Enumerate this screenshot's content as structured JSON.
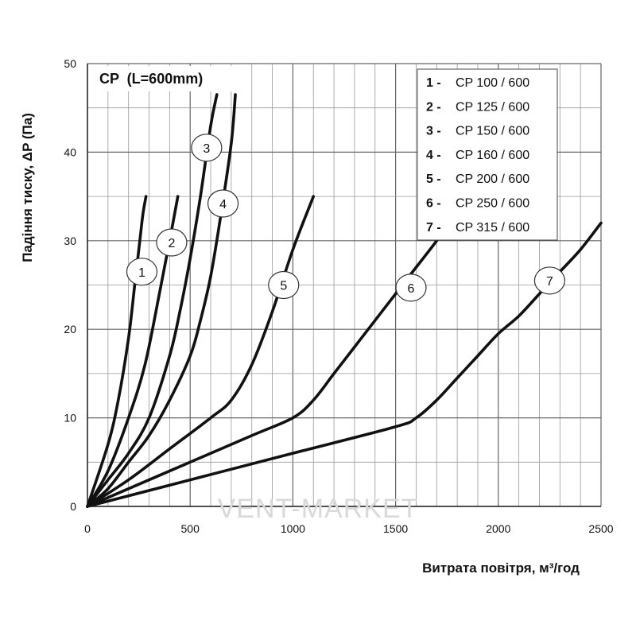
{
  "watermark": "VENT-MARKET",
  "chart_data": {
    "type": "line",
    "title": "CP  (L=600mm)",
    "xlabel": "Витрата повітря, м³/год",
    "ylabel": "Падіння тиску, ΔP (Па)",
    "xlim": [
      0,
      2500
    ],
    "ylim": [
      0,
      50
    ],
    "xticks": [
      0,
      500,
      1000,
      1500,
      2000,
      2500
    ],
    "yticks": [
      0,
      10,
      20,
      30,
      40,
      50
    ],
    "grid": true,
    "legend_position": "top-right",
    "series": [
      {
        "name": "CP 100 / 600",
        "number": "1",
        "label_at": [
          265,
          26.5
        ],
        "x": [
          0,
          100,
          150,
          200,
          230,
          255,
          270,
          285
        ],
        "y": [
          0,
          7,
          12,
          19,
          25,
          30,
          33,
          35
        ]
      },
      {
        "name": "CP 125 / 600",
        "number": "2",
        "label_at": [
          410,
          29.8
        ],
        "x": [
          0,
          100,
          200,
          280,
          350,
          400,
          440
        ],
        "y": [
          0,
          4,
          10,
          16,
          24,
          30,
          35
        ]
      },
      {
        "name": "CP 150 / 600",
        "number": "3",
        "label_at": [
          580,
          40.5
        ],
        "x": [
          0,
          100,
          200,
          300,
          400,
          450,
          500,
          550,
          600,
          630
        ],
        "y": [
          0,
          3,
          6,
          10,
          17,
          22,
          28,
          35,
          43,
          46.5
        ]
      },
      {
        "name": "CP 160 / 600",
        "number": "4",
        "label_at": [
          660,
          34.2
        ],
        "x": [
          0,
          100,
          200,
          300,
          400,
          500,
          550,
          600,
          650,
          700,
          720
        ],
        "y": [
          0,
          2,
          5,
          8,
          12,
          17,
          21,
          26,
          33,
          41,
          46.5
        ]
      },
      {
        "name": "CP 200 / 600",
        "number": "5",
        "label_at": [
          955,
          25
        ],
        "x": [
          0,
          200,
          400,
          600,
          700,
          800,
          900,
          1000,
          1100
        ],
        "y": [
          0,
          3,
          6.5,
          10,
          12,
          16,
          22,
          29,
          35
        ]
      },
      {
        "name": "CP 250 / 600",
        "number": "6",
        "label_at": [
          1575,
          24.7
        ],
        "x": [
          0,
          400,
          800,
          1000,
          1100,
          1200,
          1300,
          1400,
          1500,
          1600,
          1700,
          1790
        ],
        "y": [
          0,
          4,
          8,
          10,
          12,
          15,
          18,
          21,
          24,
          27,
          30,
          33
        ]
      },
      {
        "name": "CP 315 / 600",
        "number": "7",
        "label_at": [
          2250,
          25.5
        ],
        "x": [
          0,
          500,
          1000,
          1500,
          1600,
          1700,
          1800,
          1900,
          2000,
          2100,
          2200,
          2300,
          2400,
          2500
        ],
        "y": [
          0,
          3,
          6,
          9,
          10,
          12,
          14.5,
          17,
          19.5,
          21.5,
          24,
          26.5,
          29,
          32
        ]
      }
    ]
  }
}
